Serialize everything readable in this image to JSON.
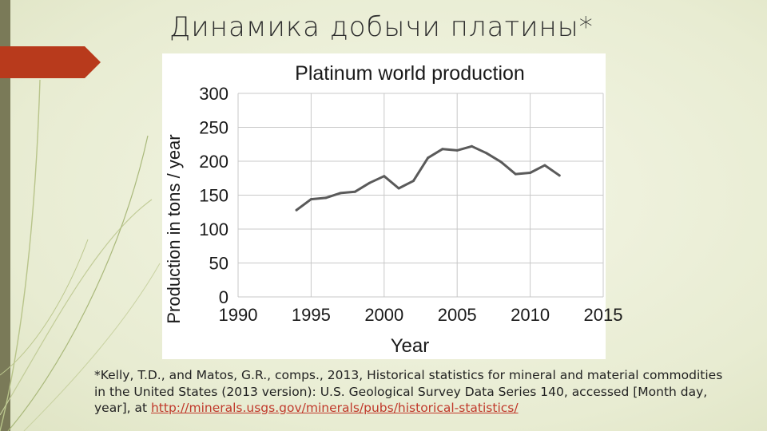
{
  "slide": {
    "title": "Динамика добычи платины*",
    "accent_color": "#b83a1c",
    "citation": {
      "text": "*Kelly, T.D., and Matos, G.R., comps., 2013, Historical statistics for mineral and material commodities in the United States (2013 version): U.S. Geological Survey Data Series 140, accessed [Month day, year], at ",
      "link_text": "http://minerals.usgs.gov/minerals/pubs/historical-statistics/"
    }
  },
  "chart_data": {
    "type": "line",
    "title": "Platinum world production",
    "xlabel": "Year",
    "ylabel": "Production in tons / year",
    "xlim": [
      1990,
      2015
    ],
    "ylim": [
      0,
      300
    ],
    "xticks": [
      1990,
      1995,
      2000,
      2005,
      2010,
      2015
    ],
    "yticks": [
      0,
      50,
      100,
      150,
      200,
      250,
      300
    ],
    "grid": true,
    "line_color": "#5a5a5a",
    "series": [
      {
        "x": [
          1994,
          1995,
          1996,
          1997,
          1998,
          1999,
          2000,
          2001,
          2002,
          2003,
          2004,
          2005,
          2006,
          2007,
          2008,
          2009,
          2010,
          2011,
          2012
        ],
        "values": [
          128,
          144,
          146,
          153,
          155,
          168,
          178,
          160,
          171,
          205,
          218,
          216,
          222,
          212,
          199,
          181,
          183,
          194,
          179
        ]
      }
    ]
  }
}
